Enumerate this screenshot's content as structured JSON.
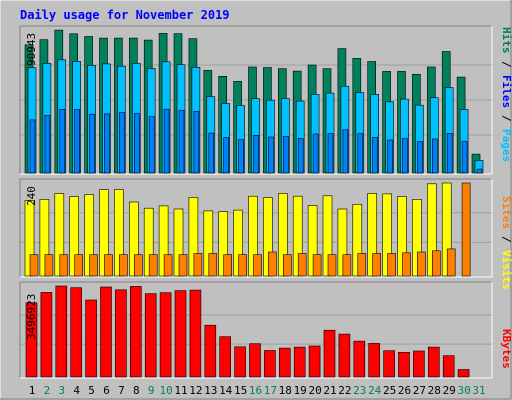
{
  "title": "Daily usage for November 2019",
  "colors": {
    "background": "#c0c0c0",
    "title": "#0000ff",
    "hits": "#00805c",
    "files": "#0080ff",
    "pages": "#00c0ff",
    "visits": "#ffff00",
    "sites": "#ff8000",
    "kbytes": "#ff0000",
    "weekday_label": "#000000",
    "weekend_label": "#00805c"
  },
  "chart_data": [
    {
      "type": "bar",
      "panel": "hits-files-pages",
      "max_label": "90943",
      "ylim": [
        0,
        90943
      ],
      "legend_right": [
        "Hits",
        "/",
        "Files",
        "/",
        "Pages"
      ],
      "categories": [
        "1",
        "2",
        "3",
        "4",
        "5",
        "6",
        "7",
        "8",
        "9",
        "10",
        "11",
        "12",
        "13",
        "14",
        "15",
        "16",
        "17",
        "18",
        "19",
        "20",
        "21",
        "22",
        "23",
        "24",
        "25",
        "26",
        "27",
        "28",
        "29",
        "30",
        "31"
      ],
      "series": [
        {
          "name": "Hits",
          "values": [
            81500,
            84800,
            90900,
            88500,
            86800,
            85800,
            85800,
            85800,
            84500,
            88800,
            88600,
            85400,
            65300,
            61500,
            58300,
            67400,
            67100,
            66400,
            64800,
            68700,
            66300,
            79100,
            72900,
            70900,
            64600,
            64600,
            62800,
            67400,
            77300,
            61000,
            12000
          ]
        },
        {
          "name": "Files",
          "values": [
            67000,
            69700,
            72000,
            70900,
            68400,
            69400,
            67900,
            69700,
            66500,
            70700,
            68900,
            67200,
            48600,
            44200,
            42900,
            47300,
            46300,
            47400,
            45700,
            50000,
            50800,
            55200,
            51100,
            50000,
            45300,
            47000,
            43100,
            47900,
            54400,
            40400,
            8000
          ]
        },
        {
          "name": "Pages",
          "values": [
            33800,
            36600,
            40500,
            40300,
            37400,
            37600,
            38500,
            37700,
            35900,
            40600,
            39800,
            39200,
            25400,
            22600,
            21200,
            24000,
            22900,
            23300,
            22000,
            24800,
            25000,
            27500,
            25000,
            22600,
            21000,
            21800,
            20000,
            21600,
            25200,
            20000,
            2500
          ]
        }
      ],
      "weekend_days": [
        "2",
        "3",
        "9",
        "10",
        "16",
        "17",
        "23",
        "24",
        "30",
        "31"
      ]
    },
    {
      "type": "bar",
      "panel": "visits-sites",
      "max_label": "240",
      "ylim": [
        0,
        240
      ],
      "legend_right": [
        "Sites",
        "/",
        "Visits"
      ],
      "series": [
        {
          "name": "Visits",
          "values": [
            195,
            198,
            213,
            205,
            210,
            223,
            223,
            191,
            175,
            181,
            173,
            203,
            168,
            166,
            170,
            206,
            202,
            213,
            206,
            182,
            207,
            173,
            185,
            213,
            212,
            205,
            198,
            238,
            240,
            0,
            0
          ]
        },
        {
          "name": "Sites",
          "values": [
            55,
            55,
            55,
            55,
            55,
            55,
            55,
            55,
            55,
            55,
            55,
            58,
            58,
            55,
            55,
            55,
            62,
            55,
            58,
            55,
            55,
            55,
            58,
            58,
            58,
            60,
            62,
            65,
            70,
            240,
            0
          ]
        }
      ]
    },
    {
      "type": "bar",
      "panel": "kbytes",
      "max_label": "3496923",
      "ylim": [
        0,
        3496923
      ],
      "legend_right": [
        "KBytes"
      ],
      "series": [
        {
          "name": "KBytes",
          "values": [
            2850000,
            3250000,
            3497000,
            3430000,
            2960000,
            3460000,
            3350000,
            3480000,
            3200000,
            3240000,
            3320000,
            3340000,
            1990000,
            1550000,
            1160000,
            1280000,
            1020000,
            1110000,
            1150000,
            1190000,
            1800000,
            1650000,
            1380000,
            1290000,
            1010000,
            950000,
            1000000,
            1150000,
            820000,
            290000,
            0
          ]
        }
      ]
    }
  ]
}
